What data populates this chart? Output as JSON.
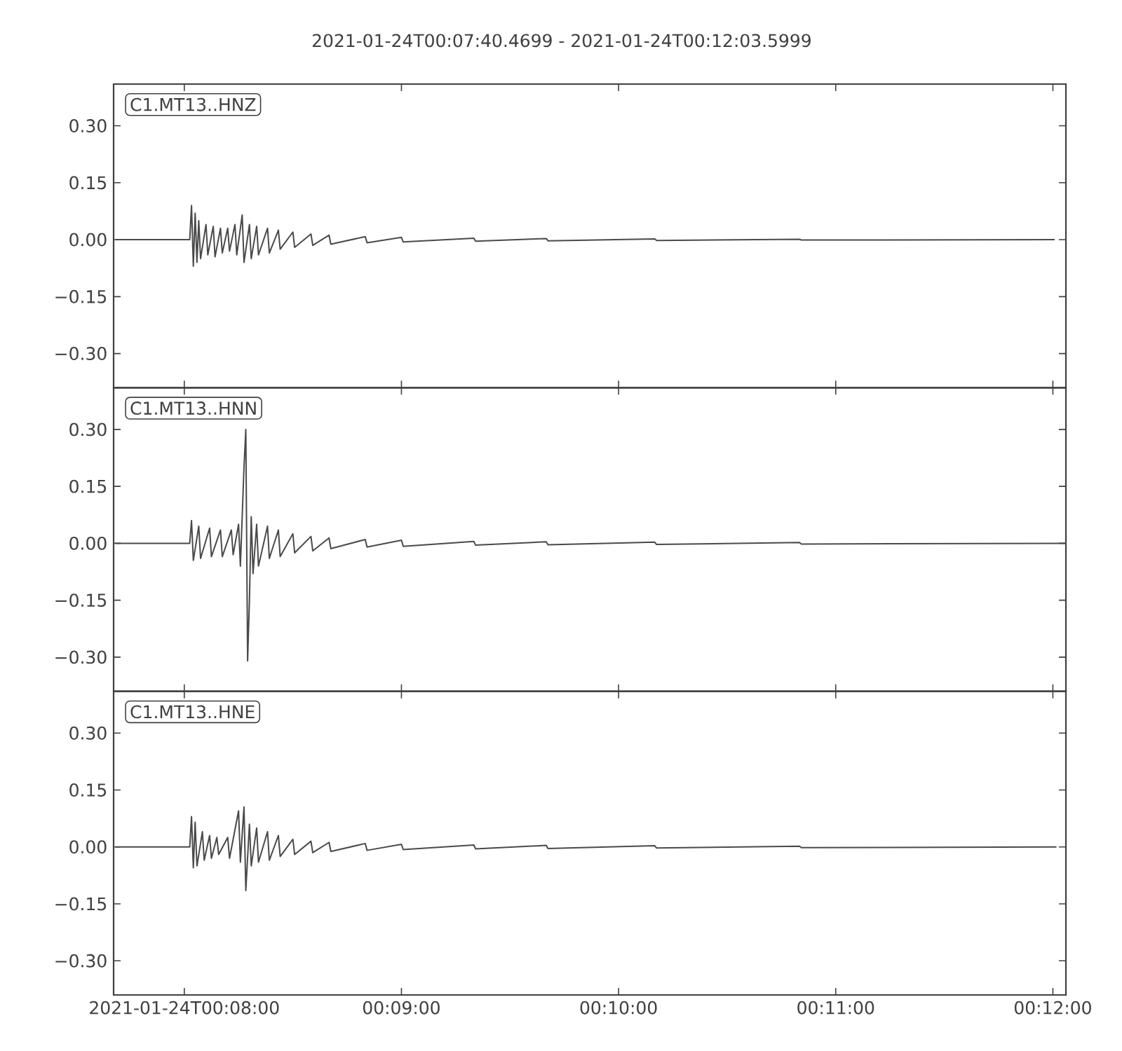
{
  "chart_data": [
    {
      "type": "line",
      "title": "2021-01-24T00:07:40.4699  -  2021-01-24T00:12:03.5999",
      "annotations": [
        "C1.MT13..HNZ"
      ],
      "xlim": [
        "2021-01-24T00:07:40.4699",
        "2021-01-24T00:12:03.5999"
      ],
      "xticks": [
        {
          "value": "2021-01-24T00:08:00",
          "label": null
        },
        {
          "value": "2021-01-24T00:09:00",
          "label": null
        },
        {
          "value": "2021-01-24T00:10:00",
          "label": null
        },
        {
          "value": "2021-01-24T00:11:00",
          "label": null
        },
        {
          "value": "2021-01-24T00:12:00",
          "label": null
        }
      ],
      "ylim": [
        -0.39,
        0.41
      ],
      "yticks": [
        {
          "value": -0.3,
          "label": "−0.30"
        },
        {
          "value": -0.15,
          "label": "−0.15"
        },
        {
          "value": 0,
          "label": "0.00"
        },
        {
          "value": 0.15,
          "label": "0.15"
        },
        {
          "value": 0.3,
          "label": "0.30"
        }
      ],
      "tick_labels": "y",
      "series": [
        {
          "color": "#4a4a4a",
          "x": [
            "2021-01-24T00:07:41",
            "2021-01-24T00:08:01.5",
            "2021-01-24T00:08:02",
            "2021-01-24T00:08:02.5",
            "2021-01-24T00:08:03",
            "2021-01-24T00:08:03.5",
            "2021-01-24T00:08:04",
            "2021-01-24T00:08:04.5",
            "2021-01-24T00:08:06",
            "2021-01-24T00:08:06.5",
            "2021-01-24T00:08:08",
            "2021-01-24T00:08:08.5",
            "2021-01-24T00:08:10",
            "2021-01-24T00:08:10.5",
            "2021-01-24T00:08:12",
            "2021-01-24T00:08:12.5",
            "2021-01-24T00:08:14",
            "2021-01-24T00:08:14.5",
            "2021-01-24T00:08:16",
            "2021-01-24T00:08:16.5",
            "2021-01-24T00:08:18",
            "2021-01-24T00:08:18.5",
            "2021-01-24T00:08:20",
            "2021-01-24T00:08:20.5",
            "2021-01-24T00:08:23",
            "2021-01-24T00:08:23.5",
            "2021-01-24T00:08:26",
            "2021-01-24T00:08:26.5",
            "2021-01-24T00:08:30",
            "2021-01-24T00:08:30.5",
            "2021-01-24T00:08:35",
            "2021-01-24T00:08:35.5",
            "2021-01-24T00:08:40",
            "2021-01-24T00:08:40.5",
            "2021-01-24T00:08:50",
            "2021-01-24T00:08:50.5",
            "2021-01-24T00:09:00",
            "2021-01-24T00:09:00.5",
            "2021-01-24T00:09:20",
            "2021-01-24T00:09:20.5",
            "2021-01-24T00:09:40",
            "2021-01-24T00:09:40.5",
            "2021-01-24T00:10:10",
            "2021-01-24T00:10:10.5",
            "2021-01-24T00:10:50",
            "2021-01-24T00:10:50.5",
            "2021-01-24T00:12:00.5"
          ],
          "values": [
            0,
            0,
            0.09,
            -0.07,
            0.07,
            -0.06,
            0.05,
            -0.05,
            0.04,
            -0.04,
            0.035,
            -0.045,
            0.03,
            -0.035,
            0.03,
            -0.03,
            0.04,
            -0.04,
            0.065,
            -0.06,
            0.04,
            -0.05,
            0.035,
            -0.04,
            0.03,
            -0.035,
            0.025,
            -0.025,
            0.02,
            -0.02,
            0.015,
            -0.015,
            0.012,
            -0.012,
            0.008,
            -0.008,
            0.006,
            -0.006,
            0.004,
            -0.004,
            0.003,
            -0.003,
            0.002,
            -0.002,
            0.001,
            -0.001,
            0
          ]
        }
      ]
    },
    {
      "type": "line",
      "annotations": [
        "C1.MT13..HNN"
      ],
      "xlim": [
        "2021-01-24T00:07:40.4699",
        "2021-01-24T00:12:03.5999"
      ],
      "xticks": [
        {
          "value": "2021-01-24T00:08:00",
          "label": null
        },
        {
          "value": "2021-01-24T00:09:00",
          "label": null
        },
        {
          "value": "2021-01-24T00:10:00",
          "label": null
        },
        {
          "value": "2021-01-24T00:11:00",
          "label": null
        },
        {
          "value": "2021-01-24T00:12:00",
          "label": null
        }
      ],
      "ylim": [
        -0.39,
        0.41
      ],
      "yticks": [
        {
          "value": -0.3,
          "label": "−0.30"
        },
        {
          "value": -0.15,
          "label": "−0.15"
        },
        {
          "value": 0,
          "label": "0.00"
        },
        {
          "value": 0.15,
          "label": "0.15"
        },
        {
          "value": 0.3,
          "label": "0.30"
        }
      ],
      "tick_labels": "y",
      "series": [
        {
          "color": "#4a4a4a",
          "x": [
            "2021-01-24T00:07:41",
            "2021-01-24T00:08:01.5",
            "2021-01-24T00:08:02",
            "2021-01-24T00:08:02.5",
            "2021-01-24T00:08:04",
            "2021-01-24T00:08:04.5",
            "2021-01-24T00:08:07",
            "2021-01-24T00:08:07.5",
            "2021-01-24T00:08:10",
            "2021-01-24T00:08:10.5",
            "2021-01-24T00:08:13",
            "2021-01-24T00:08:13.5",
            "2021-01-24T00:08:15",
            "2021-01-24T00:08:15.5",
            "2021-01-24T00:08:16.5",
            "2021-01-24T00:08:17",
            "2021-01-24T00:08:17.5",
            "2021-01-24T00:08:18",
            "2021-01-24T00:08:18.5",
            "2021-01-24T00:08:19",
            "2021-01-24T00:08:20",
            "2021-01-24T00:08:20.5",
            "2021-01-24T00:08:23",
            "2021-01-24T00:08:23.5",
            "2021-01-24T00:08:26",
            "2021-01-24T00:08:26.5",
            "2021-01-24T00:08:30",
            "2021-01-24T00:08:30.5",
            "2021-01-24T00:08:35",
            "2021-01-24T00:08:35.5",
            "2021-01-24T00:08:40",
            "2021-01-24T00:08:40.5",
            "2021-01-24T00:08:50",
            "2021-01-24T00:08:50.5",
            "2021-01-24T00:09:00",
            "2021-01-24T00:09:00.5",
            "2021-01-24T00:09:20",
            "2021-01-24T00:09:20.5",
            "2021-01-24T00:09:40",
            "2021-01-24T00:09:40.5",
            "2021-01-24T00:10:10",
            "2021-01-24T00:10:10.5",
            "2021-01-24T00:10:50",
            "2021-01-24T00:10:50.5",
            "2021-01-24T00:12:03.5"
          ],
          "values": [
            0,
            0,
            0.06,
            -0.045,
            0.045,
            -0.04,
            0.04,
            -0.035,
            0.035,
            -0.035,
            0.035,
            -0.03,
            0.05,
            -0.06,
            0.2,
            0.3,
            -0.31,
            -0.15,
            0.07,
            -0.08,
            0.05,
            -0.06,
            0.045,
            -0.04,
            0.035,
            -0.035,
            0.025,
            -0.025,
            0.018,
            -0.02,
            0.014,
            -0.014,
            0.01,
            -0.01,
            0.008,
            -0.008,
            0.005,
            -0.005,
            0.004,
            -0.004,
            0.003,
            -0.003,
            0.002,
            -0.002,
            0
          ]
        }
      ]
    },
    {
      "type": "line",
      "annotations": [
        "C1.MT13..HNE"
      ],
      "xlim": [
        "2021-01-24T00:07:40.4699",
        "2021-01-24T00:12:03.5999"
      ],
      "xticks": [
        {
          "value": "2021-01-24T00:08:00",
          "label": "2021-01-24T00:08:00"
        },
        {
          "value": "2021-01-24T00:09:00",
          "label": "00:09:00"
        },
        {
          "value": "2021-01-24T00:10:00",
          "label": "00:10:00"
        },
        {
          "value": "2021-01-24T00:11:00",
          "label": "00:11:00"
        },
        {
          "value": "2021-01-24T00:12:00",
          "label": "00:12:00"
        }
      ],
      "ylim": [
        -0.39,
        0.41
      ],
      "yticks": [
        {
          "value": -0.3,
          "label": "−0.30"
        },
        {
          "value": -0.15,
          "label": "−0.15"
        },
        {
          "value": 0,
          "label": "0.00"
        },
        {
          "value": 0.15,
          "label": "0.15"
        },
        {
          "value": 0.3,
          "label": "0.30"
        }
      ],
      "series": [
        {
          "color": "#4a4a4a",
          "x": [
            "2021-01-24T00:07:41",
            "2021-01-24T00:08:01.5",
            "2021-01-24T00:08:02",
            "2021-01-24T00:08:02.5",
            "2021-01-24T00:08:03",
            "2021-01-24T00:08:03.5",
            "2021-01-24T00:08:05",
            "2021-01-24T00:08:05.5",
            "2021-01-24T00:08:07",
            "2021-01-24T00:08:07.5",
            "2021-01-24T00:08:09",
            "2021-01-24T00:08:09.5",
            "2021-01-24T00:08:12",
            "2021-01-24T00:08:12.5",
            "2021-01-24T00:08:15",
            "2021-01-24T00:08:15.5",
            "2021-01-24T00:08:16.5",
            "2021-01-24T00:08:17",
            "2021-01-24T00:08:18",
            "2021-01-24T00:08:18.5",
            "2021-01-24T00:08:20",
            "2021-01-24T00:08:20.5",
            "2021-01-24T00:08:23",
            "2021-01-24T00:08:23.5",
            "2021-01-24T00:08:26",
            "2021-01-24T00:08:26.5",
            "2021-01-24T00:08:30",
            "2021-01-24T00:08:30.5",
            "2021-01-24T00:08:35",
            "2021-01-24T00:08:35.5",
            "2021-01-24T00:08:40",
            "2021-01-24T00:08:40.5",
            "2021-01-24T00:08:50",
            "2021-01-24T00:08:50.5",
            "2021-01-24T00:09:00",
            "2021-01-24T00:09:00.5",
            "2021-01-24T00:09:20",
            "2021-01-24T00:09:20.5",
            "2021-01-24T00:09:40",
            "2021-01-24T00:09:40.5",
            "2021-01-24T00:10:10",
            "2021-01-24T00:10:10.5",
            "2021-01-24T00:10:50",
            "2021-01-24T00:10:50.5",
            "2021-01-24T00:12:01"
          ],
          "values": [
            0,
            0,
            0.08,
            -0.055,
            0.065,
            -0.05,
            0.04,
            -0.035,
            0.03,
            -0.03,
            0.025,
            -0.02,
            0.025,
            -0.03,
            0.095,
            -0.04,
            0.105,
            -0.115,
            0.06,
            -0.05,
            0.05,
            -0.04,
            0.04,
            -0.035,
            0.03,
            -0.025,
            0.02,
            -0.02,
            0.015,
            -0.015,
            0.012,
            -0.012,
            0.009,
            -0.009,
            0.007,
            -0.007,
            0.005,
            -0.005,
            0.004,
            -0.004,
            0.003,
            -0.003,
            0.002,
            -0.002,
            0
          ]
        }
      ]
    }
  ]
}
